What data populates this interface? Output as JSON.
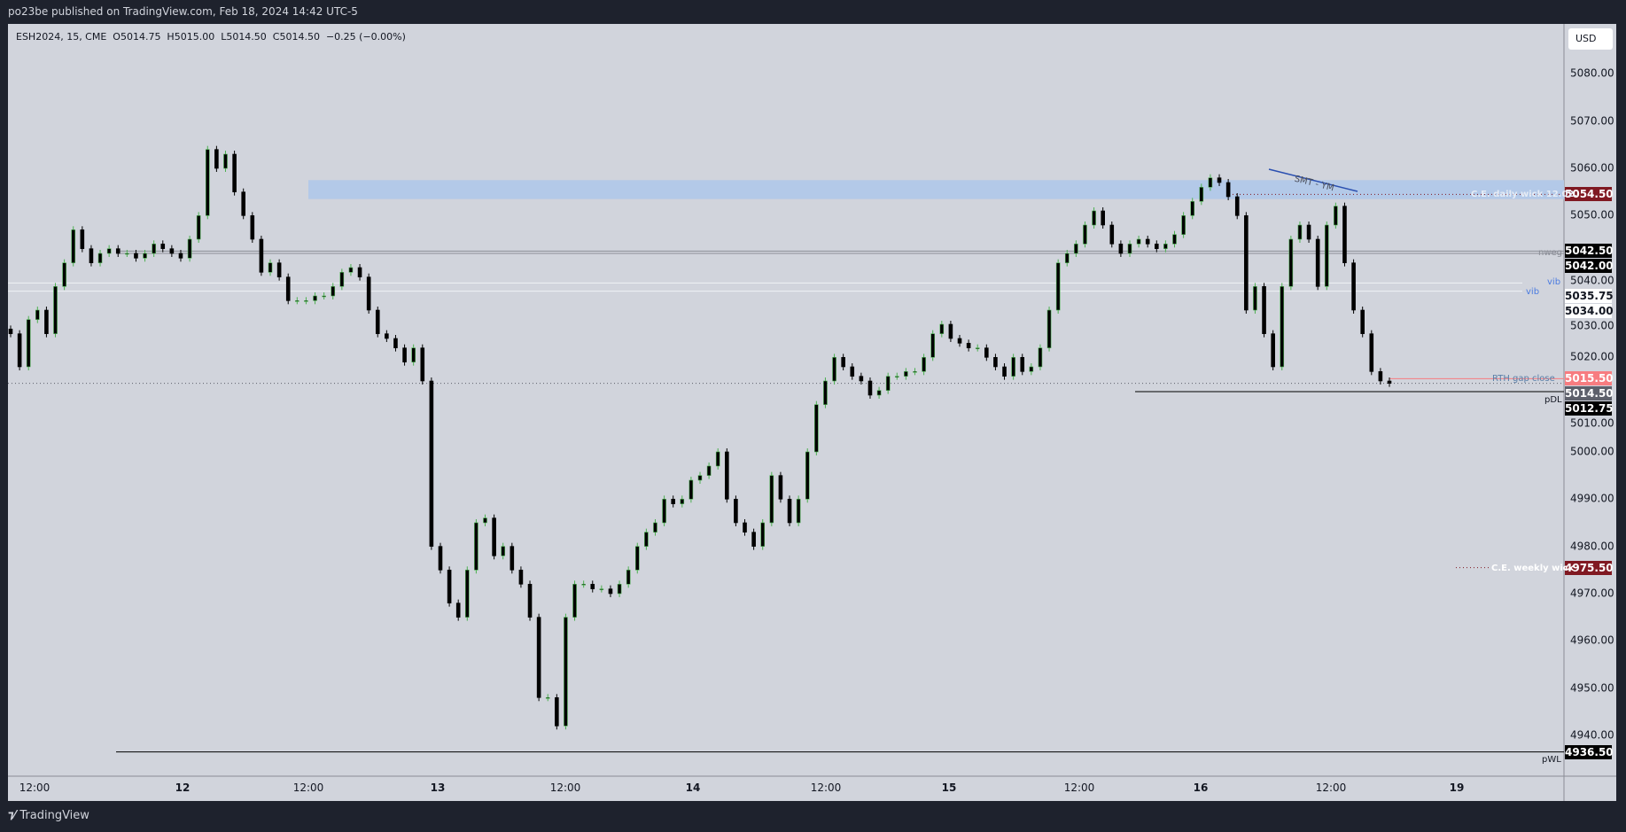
{
  "publisher_line": "po23be published on TradingView.com, Feb 18, 2024 14:42 UTC-5",
  "legend": "ESH2024, 15, CME  O5014.75  H5015.00  L5014.50  C5014.50  −0.25 (−0.00%)",
  "currency": "USD",
  "brand": "TradingView",
  "colors": {
    "up_wick": "#4caf50",
    "body": "#000000",
    "zone": "#b3c9e8",
    "red_tag": "#801922",
    "pink_tag": "#f77c80",
    "gray_tag": "#5d606b"
  },
  "chart_data": {
    "type": "candlestick",
    "symbol": "ESH2024",
    "interval": "15",
    "ylim": [
      4930,
      5085
    ],
    "y_ticks": [
      "5080.00",
      "5070.00",
      "5060.00",
      "5050.00",
      "5040.00",
      "5030.00",
      "5020.00",
      "5010.00",
      "5000.00",
      "4990.00",
      "4980.00",
      "4970.00",
      "4960.00",
      "4950.00",
      "4940.00"
    ],
    "x_ticks": [
      "12:00",
      "12",
      "12:00",
      "13",
      "12:00",
      "14",
      "12:00",
      "15",
      "12:00",
      "16",
      "12:00",
      "19"
    ],
    "closes": [
      5025,
      5018,
      5028,
      5030,
      5025,
      5035,
      5040,
      5047,
      5043,
      5040,
      5042,
      5043,
      5042,
      5042,
      5041,
      5042,
      5044,
      5043,
      5042,
      5041,
      5045,
      5050,
      5064,
      5060,
      5063,
      5055,
      5050,
      5045,
      5038,
      5040,
      5037,
      5032,
      5032,
      5032,
      5033,
      5033,
      5035,
      5038,
      5039,
      5037,
      5030,
      5025,
      5024,
      5022,
      5019,
      5022,
      5015,
      4980,
      4975,
      4968,
      4965,
      4975,
      4985,
      4986,
      4978,
      4980,
      4975,
      4972,
      4965,
      4948,
      4948,
      4942,
      4965,
      4972,
      4972,
      4971,
      4971,
      4970,
      4972,
      4975,
      4980,
      4983,
      4985,
      4990,
      4989,
      4990,
      4994,
      4995,
      4997,
      5000,
      4990,
      4985,
      4983,
      4980,
      4985,
      4995,
      4990,
      4985,
      4990,
      5000,
      5010,
      5015,
      5020,
      5018,
      5016,
      5015,
      5012,
      5013,
      5016,
      5016,
      5017,
      5017,
      5020,
      5025,
      5027,
      5024,
      5023,
      5022,
      5022,
      5020,
      5018,
      5016,
      5020,
      5017,
      5018,
      5022,
      5030,
      5040,
      5042,
      5044,
      5048,
      5051,
      5048,
      5044,
      5042,
      5044,
      5045,
      5044,
      5043,
      5044,
      5046,
      5050,
      5053,
      5056,
      5058,
      5057,
      5054,
      5050,
      5030,
      5035,
      5025,
      5018,
      5035,
      5045,
      5048,
      5045,
      5035,
      5048,
      5052,
      5040,
      5030,
      5025,
      5017,
      5015,
      5014.5
    ],
    "price_tags": [
      {
        "value": "5054.50",
        "price": 5054.5,
        "bg": "#801922",
        "fg": "#ffffff"
      },
      {
        "value": "5042.50",
        "price": 5042.5,
        "bg": "#000000",
        "fg": "#ffffff"
      },
      {
        "value": "5042.00",
        "price": 5042.0,
        "bg": "#000000",
        "fg": "#ffffff"
      },
      {
        "value": "5035.75",
        "price": 5035.75,
        "bg": "#ffffff",
        "fg": "#131722"
      },
      {
        "value": "5034.00",
        "price": 5034.0,
        "bg": "#ffffff",
        "fg": "#131722"
      },
      {
        "value": "5015.50",
        "price": 5015.5,
        "bg": "#f77c80",
        "fg": "#ffffff"
      },
      {
        "value": "5014.50",
        "price": 5014.5,
        "bg": "#5d606b",
        "fg": "#ffffff"
      },
      {
        "value": "5012.75",
        "price": 5012.75,
        "bg": "#000000",
        "fg": "#ffffff"
      },
      {
        "value": "4975.50",
        "price": 4975.5,
        "bg": "#801922",
        "fg": "#ffffff"
      },
      {
        "value": "4936.50",
        "price": 4936.5,
        "bg": "#000000",
        "fg": "#ffffff"
      }
    ],
    "annotations": {
      "daily_wick": "C.E. daily wick 12.02.",
      "nweg": "nweg",
      "vib1": "vib",
      "vib2": "vib",
      "rth": "RTH gap close",
      "pdl": "pDL",
      "weekly_wick": "C.E. weekly wick",
      "pwl": "pWL",
      "smt": "SMT - YM"
    }
  }
}
